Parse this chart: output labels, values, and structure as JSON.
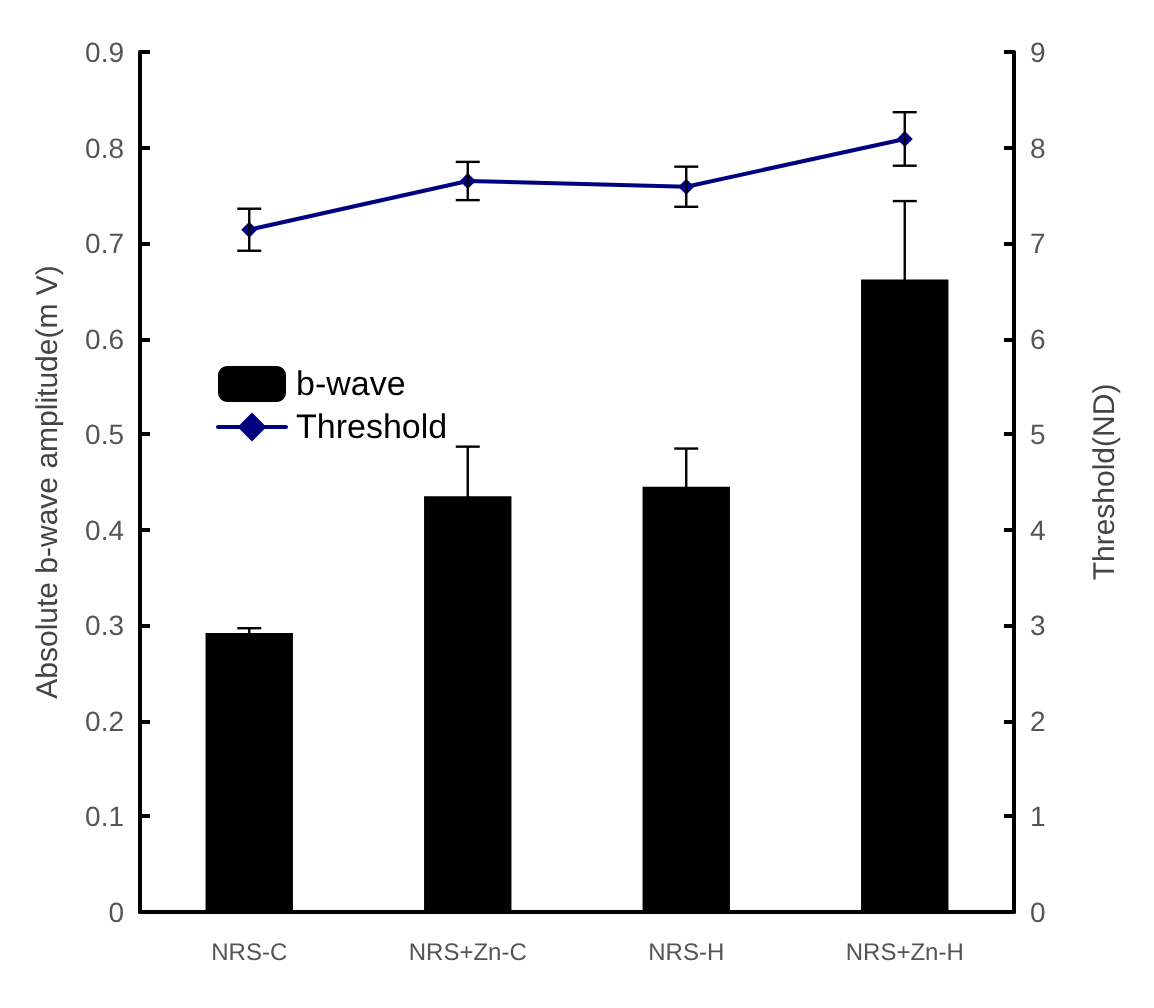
{
  "chart_data": {
    "type": "bar",
    "categories": [
      "NRS-C",
      "NRS+Zn-C",
      "NRS-H",
      "NRS+Zn-H"
    ],
    "ylabel": "Absolute b-wave amplitude(m V)",
    "y2label": "Threshold(ND)",
    "ylim": [
      0,
      0.9
    ],
    "yticks": [
      0,
      0.1,
      0.2,
      0.3,
      0.4,
      0.5,
      0.6,
      0.7,
      0.8,
      0.9
    ],
    "y2lim": [
      0,
      9
    ],
    "y2ticks": [
      0,
      1,
      2,
      3,
      4,
      5,
      6,
      7,
      8,
      9
    ],
    "series": [
      {
        "name": "b-wave",
        "color": "#000000",
        "values": [
          0.292,
          0.435,
          0.445,
          0.662
        ],
        "errors": [
          0.005,
          0.052,
          0.04,
          0.082
        ]
      },
      {
        "name": "Threshold",
        "type": "line",
        "axis": "y2",
        "color": "#000080",
        "values": [
          7.14,
          7.65,
          7.59,
          8.09
        ],
        "errors": [
          0.22,
          0.2,
          0.21,
          0.28
        ],
        "marker": "diamond",
        "line_style": "solid"
      }
    ],
    "grid": false,
    "legend": "left"
  }
}
